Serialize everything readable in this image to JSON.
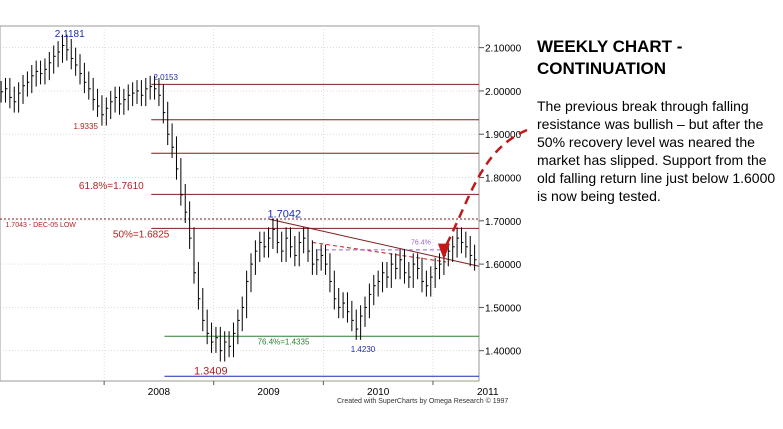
{
  "panel": {
    "title": "WEEKLY CHART - CONTINUATION",
    "body": "The previous break through falling resistance was bullish – but after the 50% recovery level was neared the market has slipped. Support from the old falling return line just below 1.6000 is now being tested."
  },
  "credit": "Created with SuperCharts by Omega Research © 1997",
  "colors": {
    "bars": "#000000",
    "fib_line": "#7f1f1f",
    "fib_label": "#b22222",
    "green_line": "#2e7d32",
    "blue_label": "#1c2db0",
    "purple": "#9b5fd1",
    "trend_red": "#c21818",
    "grid": "#c8c8c8"
  },
  "chart_data": {
    "type": "ohlc",
    "x_ticks": [
      "2008",
      "2009",
      "2010",
      "2011"
    ],
    "y_ticks": [
      "1.40000",
      "1.50000",
      "1.60000",
      "1.70000",
      "1.80000",
      "1.90000",
      "2.00000",
      "2.10000"
    ],
    "ylim": [
      1.33,
      2.15
    ],
    "xlim": [
      2007.05,
      2011.42
    ],
    "grid": true,
    "series_close": [
      [
        2007.06,
        1.998
      ],
      [
        2007.1,
        2.005
      ],
      [
        2007.14,
        1.985
      ],
      [
        2007.18,
        1.975
      ],
      [
        2007.22,
        1.995
      ],
      [
        2007.26,
        2.012
      ],
      [
        2007.3,
        2.02
      ],
      [
        2007.34,
        2.035
      ],
      [
        2007.38,
        2.045
      ],
      [
        2007.42,
        2.04
      ],
      [
        2007.46,
        2.05
      ],
      [
        2007.5,
        2.065
      ],
      [
        2007.54,
        2.08
      ],
      [
        2007.58,
        2.09
      ],
      [
        2007.62,
        2.105
      ],
      [
        2007.66,
        2.095
      ],
      [
        2007.7,
        2.075
      ],
      [
        2007.74,
        2.06
      ],
      [
        2007.78,
        2.04
      ],
      [
        2007.82,
        2.02
      ],
      [
        2007.86,
        2.005
      ],
      [
        2007.9,
        1.98
      ],
      [
        2007.94,
        1.965
      ],
      [
        2007.98,
        1.945
      ],
      [
        2008.02,
        1.96
      ],
      [
        2008.06,
        1.975
      ],
      [
        2008.1,
        1.985
      ],
      [
        2008.14,
        1.97
      ],
      [
        2008.18,
        1.98
      ],
      [
        2008.22,
        1.99
      ],
      [
        2008.26,
        1.995
      ],
      [
        2008.3,
        2.0
      ],
      [
        2008.34,
        1.99
      ],
      [
        2008.38,
        2.005
      ],
      [
        2008.42,
        2.01
      ],
      [
        2008.46,
        2.005
      ],
      [
        2008.5,
        1.99
      ],
      [
        2008.54,
        1.95
      ],
      [
        2008.58,
        1.9
      ],
      [
        2008.62,
        1.87
      ],
      [
        2008.66,
        1.82
      ],
      [
        2008.7,
        1.76
      ],
      [
        2008.74,
        1.72
      ],
      [
        2008.78,
        1.66
      ],
      [
        2008.82,
        1.58
      ],
      [
        2008.86,
        1.52
      ],
      [
        2008.9,
        1.47
      ],
      [
        2008.94,
        1.44
      ],
      [
        2008.98,
        1.42
      ],
      [
        2009.02,
        1.43
      ],
      [
        2009.06,
        1.4
      ],
      [
        2009.1,
        1.42
      ],
      [
        2009.14,
        1.41
      ],
      [
        2009.18,
        1.44
      ],
      [
        2009.22,
        1.47
      ],
      [
        2009.26,
        1.5
      ],
      [
        2009.3,
        1.56
      ],
      [
        2009.34,
        1.6
      ],
      [
        2009.38,
        1.63
      ],
      [
        2009.42,
        1.65
      ],
      [
        2009.46,
        1.64
      ],
      [
        2009.5,
        1.66
      ],
      [
        2009.54,
        1.68
      ],
      [
        2009.58,
        1.65
      ],
      [
        2009.62,
        1.63
      ],
      [
        2009.66,
        1.66
      ],
      [
        2009.7,
        1.64
      ],
      [
        2009.74,
        1.62
      ],
      [
        2009.78,
        1.65
      ],
      [
        2009.82,
        1.66
      ],
      [
        2009.86,
        1.63
      ],
      [
        2009.9,
        1.6
      ],
      [
        2009.94,
        1.61
      ],
      [
        2009.98,
        1.62
      ],
      [
        2010.02,
        1.6
      ],
      [
        2010.06,
        1.56
      ],
      [
        2010.1,
        1.52
      ],
      [
        2010.14,
        1.5
      ],
      [
        2010.18,
        1.51
      ],
      [
        2010.22,
        1.49
      ],
      [
        2010.26,
        1.47
      ],
      [
        2010.3,
        1.45
      ],
      [
        2010.34,
        1.48
      ],
      [
        2010.38,
        1.5
      ],
      [
        2010.42,
        1.53
      ],
      [
        2010.46,
        1.55
      ],
      [
        2010.5,
        1.56
      ],
      [
        2010.54,
        1.58
      ],
      [
        2010.58,
        1.57
      ],
      [
        2010.62,
        1.6
      ],
      [
        2010.66,
        1.59
      ],
      [
        2010.7,
        1.61
      ],
      [
        2010.74,
        1.58
      ],
      [
        2010.78,
        1.57
      ],
      [
        2010.82,
        1.6
      ],
      [
        2010.86,
        1.59
      ],
      [
        2010.9,
        1.56
      ],
      [
        2010.94,
        1.55
      ],
      [
        2010.98,
        1.57
      ],
      [
        2011.02,
        1.59
      ],
      [
        2011.06,
        1.6
      ],
      [
        2011.1,
        1.62
      ],
      [
        2011.14,
        1.63
      ],
      [
        2011.18,
        1.64
      ],
      [
        2011.22,
        1.66
      ],
      [
        2011.26,
        1.65
      ],
      [
        2011.3,
        1.64
      ],
      [
        2011.34,
        1.62
      ],
      [
        2011.38,
        1.61
      ]
    ],
    "horizontal_levels": [
      {
        "value": 2.0153,
        "x_start": 2008.43,
        "color_key": "fib_line"
      },
      {
        "value": 1.9335,
        "x_start": 2008.43,
        "color_key": "fib_line"
      },
      {
        "value": 1.856,
        "x_start": 2008.43,
        "color_key": "fib_line"
      },
      {
        "value": 1.761,
        "x_start": 2008.43,
        "color_key": "fib_line"
      },
      {
        "value": 1.7043,
        "x_start": 2007.05,
        "color_key": "fib_line",
        "dashed": true
      },
      {
        "value": 1.6825,
        "x_start": 2008.43,
        "color_key": "fib_line"
      },
      {
        "value": 1.4335,
        "x_start": 2008.55,
        "color_key": "green_line"
      },
      {
        "value": 1.3409,
        "x_start": 2008.55,
        "color_key": "blue_label"
      }
    ],
    "annotations": [
      {
        "text": "2.1181",
        "x": 2007.55,
        "y": 2.125,
        "color_key": "blue_label",
        "size": 10
      },
      {
        "text": "2.0153",
        "x": 2008.45,
        "y": 2.025,
        "color_key": "blue_label",
        "size": 8
      },
      {
        "text": "1.9335",
        "x": 2007.72,
        "y": 1.912,
        "color_key": "fib_label",
        "size": 8
      },
      {
        "text": "61.8%=1.7610",
        "x": 2007.77,
        "y": 1.773,
        "color_key": "fib_label",
        "size": 10
      },
      {
        "text": "1.7043 - DEC-05 LOW",
        "x": 2007.1,
        "y": 1.686,
        "color_key": "fib_label",
        "size": 7
      },
      {
        "text": "50%=1.6825",
        "x": 2008.08,
        "y": 1.662,
        "color_key": "fib_label",
        "size": 10
      },
      {
        "text": "1.7042",
        "x": 2009.49,
        "y": 1.708,
        "color_key": "blue_label",
        "size": 11
      },
      {
        "text": "76.4%",
        "x": 2010.8,
        "y": 1.645,
        "color_key": "purple",
        "size": 7
      },
      {
        "text": "76.4%=1.4335",
        "x": 2009.4,
        "y": 1.414,
        "color_key": "green_line",
        "size": 8
      },
      {
        "text": "1.4230",
        "x": 2010.25,
        "y": 1.397,
        "color_key": "blue_label",
        "size": 8
      },
      {
        "text": "1.3409",
        "x": 2008.82,
        "y": 1.345,
        "color_key": "fib_label",
        "size": 11
      }
    ],
    "trend_lines": [
      {
        "points": [
          [
            2009.5,
            1.7042
          ],
          [
            2011.42,
            1.595
          ]
        ],
        "color_key": "fib_line",
        "dashed": false
      },
      {
        "points": [
          [
            2009.9,
            1.65
          ],
          [
            2011.12,
            1.605
          ]
        ],
        "color_key": "trend_red",
        "dashed": true
      },
      {
        "points": [
          [
            2009.95,
            1.633
          ],
          [
            2011.1,
            1.633
          ]
        ],
        "color_key": "purple",
        "dashed": true
      }
    ]
  }
}
